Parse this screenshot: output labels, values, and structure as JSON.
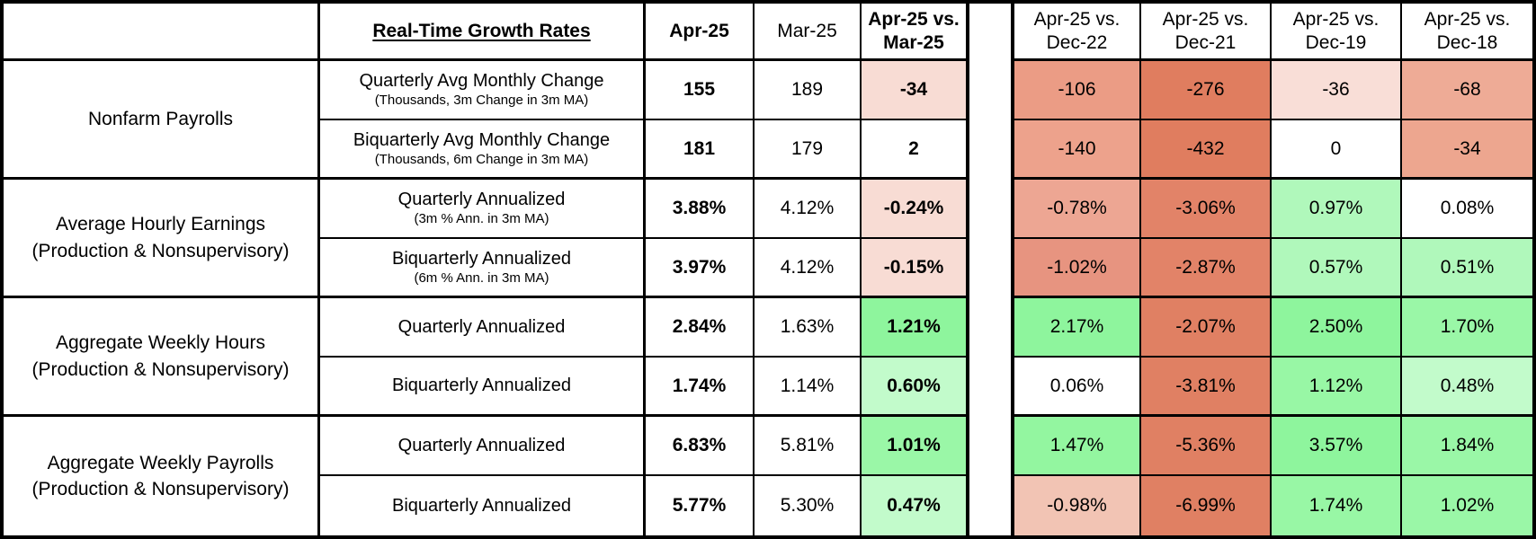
{
  "colors": {
    "border": "#000000",
    "background": "#ffffff",
    "negative_strong": "#e08063",
    "negative_medium": "#eda28c",
    "negative_light": "#f2c4b4",
    "negative_faint": "#f8dcd4",
    "positive_strong": "#8ef59d",
    "positive_medium": "#9af7a7",
    "positive_light": "#b0f8bb",
    "positive_faint": "#c2fbcb",
    "neutral": "#ffffff"
  },
  "chart_data": {
    "type": "table",
    "title": "Real-Time Growth Rates",
    "header": {
      "blank": "",
      "growth_rates_label": "Real-Time Growth Rates",
      "apr_col": "Apr-25",
      "mar_col": "Mar-25",
      "vs_mar_col": [
        "Apr-25 vs.",
        "Mar-25"
      ],
      "comparison_cols": [
        [
          "Apr-25 vs.",
          "Dec-22"
        ],
        [
          "Apr-25 vs.",
          "Dec-21"
        ],
        [
          "Apr-25 vs.",
          "Dec-19"
        ],
        [
          "Apr-25 vs.",
          "Dec-18"
        ]
      ]
    },
    "sections": [
      {
        "label": [
          "Nonfarm Payrolls"
        ],
        "rows": [
          {
            "measure": "Quarterly Avg Monthly Change",
            "note": "(Thousands, 3m Change in 3m MA)",
            "apr25": "155",
            "mar25": "189",
            "vs_mar25": {
              "v": "-34",
              "bg": "#f8dcd4"
            },
            "comparisons": [
              {
                "v": "-106",
                "bg": "#eb9c85"
              },
              {
                "v": "-276",
                "bg": "#e07d5f"
              },
              {
                "v": "-36",
                "bg": "#f9ded7"
              },
              {
                "v": "-68",
                "bg": "#eeab96"
              }
            ]
          },
          {
            "measure": "Biquarterly Avg Monthly Change",
            "note": "(Thousands, 6m Change in 3m MA)",
            "apr25": "181",
            "mar25": "179",
            "vs_mar25": {
              "v": "2",
              "bg": "#ffffff"
            },
            "comparisons": [
              {
                "v": "-140",
                "bg": "#eda28c"
              },
              {
                "v": "-432",
                "bg": "#e07d5f"
              },
              {
                "v": "0",
                "bg": "#ffffff"
              },
              {
                "v": "-34",
                "bg": "#eda68f"
              }
            ]
          }
        ]
      },
      {
        "label": [
          "Average Hourly Earnings",
          "(Production & Nonsupervisory)"
        ],
        "rows": [
          {
            "measure": "Quarterly Annualized",
            "note": "(3m % Ann. in 3m MA)",
            "apr25": "3.88%",
            "mar25": "4.12%",
            "vs_mar25": {
              "v": "-0.24%",
              "bg": "#f8dcd4"
            },
            "comparisons": [
              {
                "v": "-0.78%",
                "bg": "#eda693"
              },
              {
                "v": "-3.06%",
                "bg": "#e28368"
              },
              {
                "v": "0.97%",
                "bg": "#b0f8bb"
              },
              {
                "v": "0.08%",
                "bg": "#ffffff"
              }
            ]
          },
          {
            "measure": "Biquarterly Annualized",
            "note": "(6m % Ann. in 3m MA)",
            "apr25": "3.97%",
            "mar25": "4.12%",
            "vs_mar25": {
              "v": "-0.15%",
              "bg": "#f8dcd4"
            },
            "comparisons": [
              {
                "v": "-1.02%",
                "bg": "#e79480"
              },
              {
                "v": "-2.87%",
                "bg": "#e28368"
              },
              {
                "v": "0.57%",
                "bg": "#b0f8bb"
              },
              {
                "v": "0.51%",
                "bg": "#b0f8bb"
              }
            ]
          }
        ]
      },
      {
        "label": [
          "Aggregate Weekly Hours",
          "(Production & Nonsupervisory)"
        ],
        "rows": [
          {
            "measure": "Quarterly Annualized",
            "note": "",
            "apr25": "2.84%",
            "mar25": "1.63%",
            "vs_mar25": {
              "v": "1.21%",
              "bg": "#8ef59d"
            },
            "comparisons": [
              {
                "v": "2.17%",
                "bg": "#8ef59d"
              },
              {
                "v": "-2.07%",
                "bg": "#e08063"
              },
              {
                "v": "2.50%",
                "bg": "#8ef59d"
              },
              {
                "v": "1.70%",
                "bg": "#9af7a7"
              }
            ]
          },
          {
            "measure": "Biquarterly Annualized",
            "note": "",
            "apr25": "1.74%",
            "mar25": "1.14%",
            "vs_mar25": {
              "v": "0.60%",
              "bg": "#c2fbcb"
            },
            "comparisons": [
              {
                "v": "0.06%",
                "bg": "#ffffff"
              },
              {
                "v": "-3.81%",
                "bg": "#e08063"
              },
              {
                "v": "1.12%",
                "bg": "#98f7a5"
              },
              {
                "v": "0.48%",
                "bg": "#c2fbcb"
              }
            ]
          }
        ]
      },
      {
        "label": [
          "Aggregate Weekly Payrolls",
          "(Production & Nonsupervisory)"
        ],
        "rows": [
          {
            "measure": "Quarterly Annualized",
            "note": "",
            "apr25": "6.83%",
            "mar25": "5.81%",
            "vs_mar25": {
              "v": "1.01%",
              "bg": "#9af7a7"
            },
            "comparisons": [
              {
                "v": "1.47%",
                "bg": "#93f6a0"
              },
              {
                "v": "-5.36%",
                "bg": "#e08063"
              },
              {
                "v": "3.57%",
                "bg": "#8ef59d"
              },
              {
                "v": "1.84%",
                "bg": "#9af7a7"
              }
            ]
          },
          {
            "measure": "Biquarterly Annualized",
            "note": "",
            "apr25": "5.77%",
            "mar25": "5.30%",
            "vs_mar25": {
              "v": "0.47%",
              "bg": "#c2fbcb"
            },
            "comparisons": [
              {
                "v": "-0.98%",
                "bg": "#f2c4b4"
              },
              {
                "v": "-6.99%",
                "bg": "#e08063"
              },
              {
                "v": "1.74%",
                "bg": "#98f7a5"
              },
              {
                "v": "1.02%",
                "bg": "#9af7a7"
              }
            ]
          }
        ]
      }
    ]
  }
}
